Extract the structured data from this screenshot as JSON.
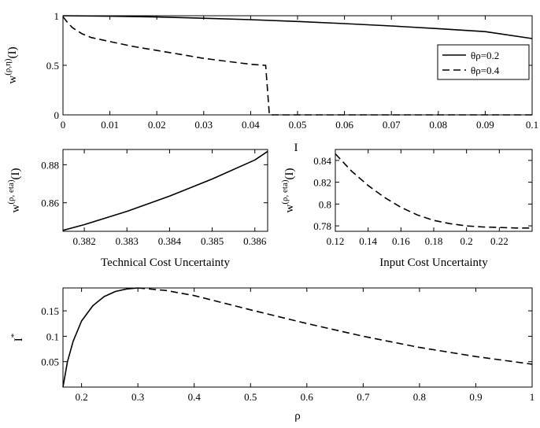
{
  "chart_data": [
    {
      "type": "line",
      "title": "",
      "ylabel_main": "w",
      "ylabel_sup": "(ρ,η)",
      "ylabel_tail": "(I)",
      "xlabel": "",
      "xlim": [
        0,
        0.1
      ],
      "ylim": [
        0,
        1
      ],
      "xticks": [
        "0",
        "0.01",
        "0.02",
        "0.03",
        "0.04",
        "0.05",
        "0.06",
        "0.07",
        "0.08",
        "0.09",
        "0.1"
      ],
      "yticks": [
        "0",
        "0.5",
        "1"
      ],
      "legend_position": "top-right",
      "series": [
        {
          "name": "θρ=0.2",
          "style": "solid",
          "x": [
            0,
            0.01,
            0.02,
            0.03,
            0.04,
            0.05,
            0.06,
            0.07,
            0.08,
            0.09,
            0.1
          ],
          "y": [
            1.0,
            0.995,
            0.987,
            0.975,
            0.96,
            0.942,
            0.921,
            0.897,
            0.87,
            0.84,
            0.77
          ]
        },
        {
          "name": "θρ=0.4",
          "style": "dashed",
          "x": [
            0,
            0.001,
            0.002,
            0.004,
            0.006,
            0.01,
            0.015,
            0.02,
            0.025,
            0.03,
            0.035,
            0.04,
            0.043,
            0.0432,
            0.044,
            0.06,
            0.08,
            0.1
          ],
          "y": [
            0.99,
            0.93,
            0.88,
            0.82,
            0.78,
            0.74,
            0.69,
            0.65,
            0.61,
            0.57,
            0.54,
            0.51,
            0.5,
            0.5,
            0.0,
            0.0,
            0.0,
            0.0
          ]
        }
      ]
    },
    {
      "type": "line",
      "title": "",
      "ylabel_main": "w",
      "ylabel_sup": "(ρ, eta)",
      "ylabel_tail": "(I)",
      "xlabel": "Technical Cost Uncertainty",
      "xlim": [
        0.3815,
        0.3863
      ],
      "ylim": [
        0.845,
        0.888
      ],
      "xticks": [
        "0.382",
        "0.383",
        "0.384",
        "0.385",
        "0.386"
      ],
      "yticks": [
        "0.86",
        "0.88"
      ],
      "series": [
        {
          "name": "",
          "style": "solid",
          "x": [
            0.3815,
            0.382,
            0.383,
            0.384,
            0.385,
            0.386,
            0.3863
          ],
          "y": [
            0.8455,
            0.8485,
            0.8555,
            0.8635,
            0.8725,
            0.8825,
            0.887
          ]
        }
      ]
    },
    {
      "type": "line",
      "title": "",
      "ylabel_main": "w",
      "ylabel_sup": "(ρ, eta)",
      "ylabel_tail": "(I)",
      "xlabel": "Input Cost Uncertainty",
      "xlim": [
        0.12,
        0.24
      ],
      "ylim": [
        0.775,
        0.85
      ],
      "xticks": [
        "0.12",
        "0.14",
        "0.16",
        "0.18",
        "0.2",
        "0.22"
      ],
      "yticks": [
        "0.78",
        "0.8",
        "0.82",
        "0.84"
      ],
      "series": [
        {
          "name": "",
          "style": "dashed",
          "x": [
            0.12,
            0.13,
            0.14,
            0.15,
            0.16,
            0.17,
            0.18,
            0.19,
            0.2,
            0.21,
            0.22,
            0.23,
            0.24
          ],
          "y": [
            0.846,
            0.83,
            0.817,
            0.806,
            0.797,
            0.79,
            0.785,
            0.782,
            0.78,
            0.779,
            0.7785,
            0.778,
            0.778
          ]
        }
      ]
    },
    {
      "type": "line",
      "title": "",
      "ylabel_main": "I",
      "ylabel_sup": "*",
      "ylabel_tail": "",
      "xlabel": "ρ",
      "xlim": [
        0.167,
        1
      ],
      "ylim": [
        0,
        0.195
      ],
      "xticks": [
        "0.2",
        "0.3",
        "0.4",
        "0.5",
        "0.6",
        "0.7",
        "0.8",
        "0.9",
        "1"
      ],
      "yticks": [
        "0.05",
        "0.1",
        "0.15"
      ],
      "series": [
        {
          "name": "",
          "style": "solid",
          "x": [
            0.167,
            0.175,
            0.185,
            0.2,
            0.22,
            0.24,
            0.26,
            0.28,
            0.3
          ],
          "y": [
            0.0,
            0.05,
            0.09,
            0.13,
            0.16,
            0.178,
            0.188,
            0.193,
            0.195
          ]
        },
        {
          "name": "",
          "style": "dashed",
          "x": [
            0.3,
            0.35,
            0.4,
            0.5,
            0.6,
            0.7,
            0.8,
            0.9,
            1.0
          ],
          "y": [
            0.195,
            0.19,
            0.18,
            0.152,
            0.125,
            0.1,
            0.078,
            0.06,
            0.045
          ]
        }
      ]
    }
  ],
  "overlay": {
    "stray_label": "I"
  }
}
